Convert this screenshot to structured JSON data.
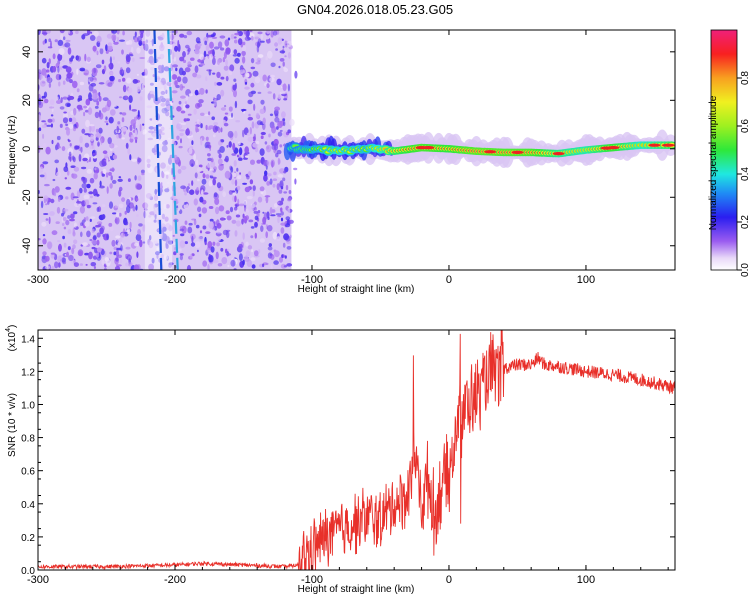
{
  "title": "GN04.2026.018.05.23.G05",
  "colors": {
    "snr_line": "#e8302a",
    "axis": "#000000",
    "background": "#ffffff"
  },
  "chart_data": [
    {
      "type": "heatmap",
      "name": "spectrogram",
      "xlabel": "Height of straight line (km)",
      "ylabel": "Frequency (Hz)",
      "xlim": [
        -300,
        165
      ],
      "ylim": [
        -50,
        49
      ],
      "x_ticks": [
        "-300",
        "-200",
        "-100",
        "0",
        "100"
      ],
      "x_tick_values": [
        -300,
        -200,
        -100,
        0,
        100
      ],
      "y_ticks": [
        "-40",
        "-20",
        "0",
        "20",
        "40"
      ],
      "y_tick_values": [
        -40,
        -20,
        0,
        20,
        40
      ],
      "noise_region_km": [
        -300,
        -115
      ],
      "streaks": [
        {
          "x_top_km": -215,
          "x_bottom_km": -210,
          "color": "#1a4fd6"
        },
        {
          "x_top_km": -205,
          "x_bottom_km": -198,
          "color": "#2fa5e0"
        }
      ],
      "carrier_track": [
        {
          "x": -115,
          "f": 0.5,
          "amp": 0.55
        },
        {
          "x": -100,
          "f": 0.0,
          "amp": 0.62
        },
        {
          "x": -80,
          "f": -1.0,
          "amp": 0.7
        },
        {
          "x": -60,
          "f": 0.0,
          "amp": 0.65
        },
        {
          "x": -40,
          "f": -1.0,
          "amp": 0.85
        },
        {
          "x": -20,
          "f": 0.5,
          "amp": 0.95
        },
        {
          "x": 0,
          "f": 0.0,
          "amp": 0.9
        },
        {
          "x": 20,
          "f": -1.0,
          "amp": 0.97
        },
        {
          "x": 40,
          "f": -1.5,
          "amp": 0.96
        },
        {
          "x": 60,
          "f": -1.5,
          "amp": 0.95
        },
        {
          "x": 80,
          "f": -2.0,
          "amp": 0.82
        },
        {
          "x": 100,
          "f": -0.5,
          "amp": 0.78
        },
        {
          "x": 120,
          "f": 0.5,
          "amp": 0.92
        },
        {
          "x": 140,
          "f": 1.5,
          "amp": 0.75
        },
        {
          "x": 165,
          "f": 1.5,
          "amp": 0.88
        }
      ],
      "colorbar": {
        "label": "Normalized spectral amplitude",
        "range": [
          0.0,
          1.0
        ],
        "ticks": [
          "0.0",
          "0.2",
          "0.4",
          "0.6",
          "0.8"
        ],
        "tick_values": [
          0.0,
          0.2,
          0.4,
          0.6,
          0.8
        ]
      }
    },
    {
      "type": "line",
      "name": "snr",
      "xlabel": "Height of straight line (km)",
      "ylabel": "SNR (10 * v/v)",
      "multiplier_label": "(x10",
      "multiplier_exp": "4",
      "xlim": [
        -300,
        165
      ],
      "ylim": [
        0,
        1.45
      ],
      "x_ticks": [
        "-300",
        "-200",
        "-100",
        "0",
        "100"
      ],
      "x_tick_values": [
        -300,
        -200,
        -100,
        0,
        100
      ],
      "y_ticks": [
        "0.0",
        "0.2",
        "0.4",
        "0.6",
        "0.8",
        "1.0",
        "1.2",
        "1.4"
      ],
      "y_tick_values": [
        0.0,
        0.2,
        0.4,
        0.6,
        0.8,
        1.0,
        1.2,
        1.4
      ],
      "series": [
        {
          "name": "SNR",
          "x": [
            -300,
            -250,
            -200,
            -180,
            -150,
            -120,
            -110,
            -100,
            -90,
            -80,
            -70,
            -60,
            -50,
            -40,
            -30,
            -25,
            -20,
            -15,
            -10,
            -5,
            0,
            5,
            10,
            20,
            30,
            40,
            50,
            60,
            65,
            70,
            80,
            100,
            120,
            140,
            165
          ],
          "y": [
            0.02,
            0.02,
            0.03,
            0.04,
            0.03,
            0.02,
            0.03,
            0.12,
            0.2,
            0.24,
            0.28,
            0.32,
            0.3,
            0.4,
            0.45,
            0.7,
            0.4,
            0.55,
            0.3,
            0.55,
            0.55,
            0.8,
            0.95,
            1.05,
            1.18,
            1.22,
            1.24,
            1.24,
            1.28,
            1.24,
            1.23,
            1.2,
            1.18,
            1.15,
            1.1
          ]
        }
      ]
    }
  ]
}
